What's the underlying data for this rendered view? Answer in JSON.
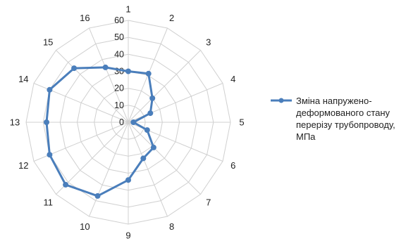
{
  "chart_data": {
    "type": "radar",
    "categories": [
      "1",
      "2",
      "3",
      "4",
      "5",
      "6",
      "7",
      "8",
      "9",
      "10",
      "11",
      "12",
      "13",
      "14",
      "15",
      "16"
    ],
    "radial_ticks": [
      "0",
      "10",
      "20",
      "30",
      "40",
      "50",
      "60"
    ],
    "rlim": [
      0,
      60
    ],
    "grid": true,
    "legend_position": "right",
    "series": [
      {
        "name": "Зміна напружено-деформованого стану перерізу трубопроводу, МПа",
        "values": [
          30,
          31,
          20,
          14,
          3,
          12,
          21,
          23,
          34,
          47,
          52,
          50,
          48,
          50,
          45,
          35
        ],
        "color": "#4a7ebb"
      }
    ]
  }
}
